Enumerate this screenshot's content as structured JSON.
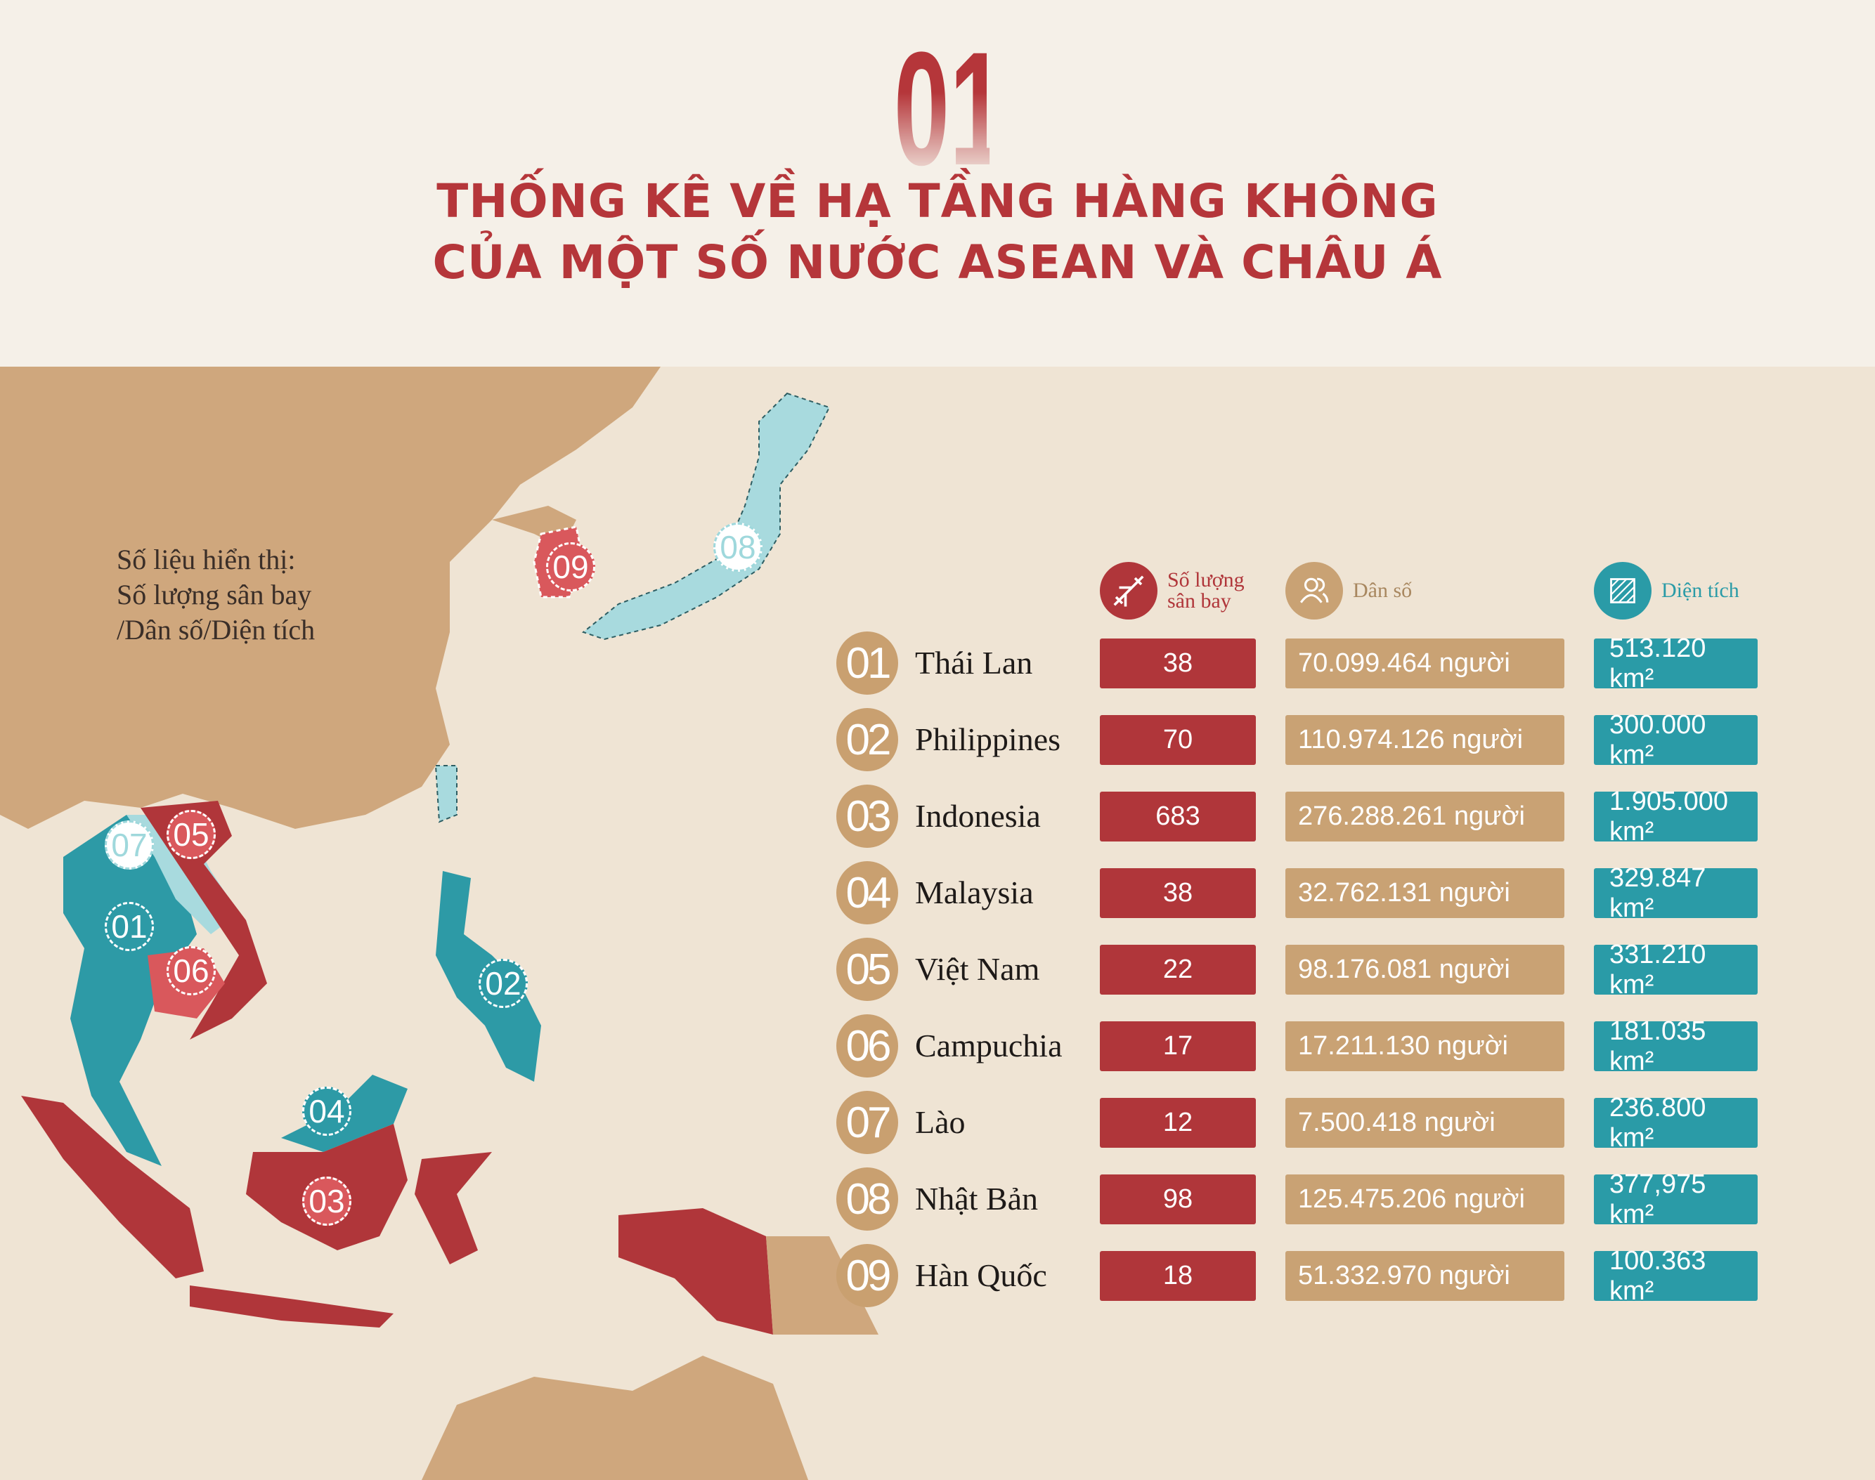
{
  "header": {
    "number": "01",
    "title_line1": "THỐNG KÊ VỀ HẠ TẦNG HÀNG KHÔNG",
    "title_line2": "CỦA MỘT SỐ NƯỚC ASEAN VÀ CHÂU Á"
  },
  "legend": {
    "line1": "Số liệu hiển thị:",
    "line2": "Số lượng sân bay",
    "line3": "/Dân số/Diện tích"
  },
  "columns": {
    "airports": {
      "line1": "Số lượng",
      "line2": "sân bay",
      "icon": "airplane-icon",
      "color": "#b0363a"
    },
    "population": {
      "label": "Dân số",
      "icon": "people-icon",
      "color": "#c9a274"
    },
    "area": {
      "label": "Diện tích",
      "icon": "hatched-square-icon",
      "color": "#2a9ba7"
    }
  },
  "rows": [
    {
      "no": "01",
      "country": "Thái Lan",
      "airports": "38",
      "population": "70.099.464 người",
      "area": "513.120 km²"
    },
    {
      "no": "02",
      "country": "Philippines",
      "airports": "70",
      "population": "110.974.126 người",
      "area": "300.000 km²"
    },
    {
      "no": "03",
      "country": "Indonesia",
      "airports": "683",
      "population": "276.288.261 người",
      "area": "1.905.000 km²"
    },
    {
      "no": "04",
      "country": "Malaysia",
      "airports": "38",
      "population": "32.762.131 người",
      "area": "329.847 km²"
    },
    {
      "no": "05",
      "country": "Việt Nam",
      "airports": "22",
      "population": "98.176.081 người",
      "area": "331.210 km²"
    },
    {
      "no": "06",
      "country": "Campuchia",
      "airports": "17",
      "population": "17.211.130 người",
      "area": "181.035 km²"
    },
    {
      "no": "07",
      "country": "Lào",
      "airports": "12",
      "population": "7.500.418 người",
      "area": "236.800 km²"
    },
    {
      "no": "08",
      "country": "Nhật Bản",
      "airports": "98",
      "population": "125.475.206 người",
      "area": "377,975 km²"
    },
    {
      "no": "09",
      "country": "Hàn Quốc",
      "airports": "18",
      "population": "51.332.970 người",
      "area": "100.363 km²"
    }
  ],
  "map_markers": [
    "09",
    "08",
    "07",
    "05",
    "01",
    "06",
    "02",
    "04",
    "03"
  ],
  "colors": {
    "red": "#b0363a",
    "tan": "#c9a274",
    "teal": "#2a9ba7",
    "light_teal": "#a8dade",
    "land": "#cfa77d",
    "sea": "#efe4d4"
  }
}
